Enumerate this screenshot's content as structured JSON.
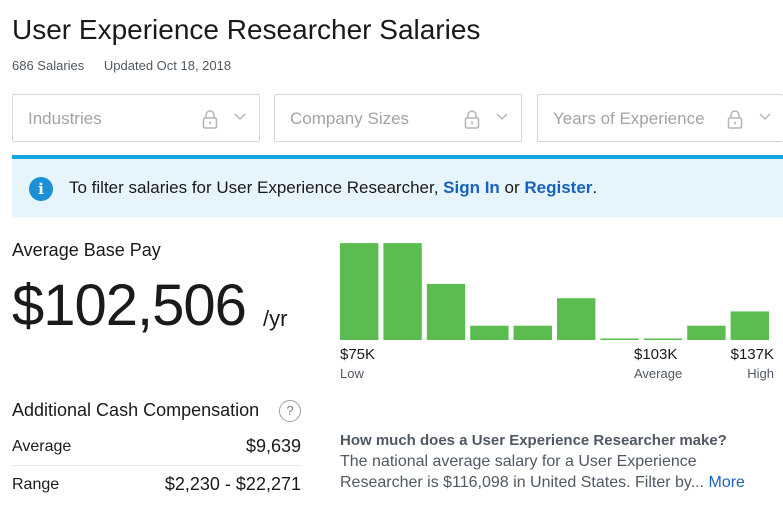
{
  "header": {
    "title": "User Experience Researcher Salaries",
    "salary_count": "686 Salaries",
    "updated": "Updated Oct 18, 2018"
  },
  "filters": [
    {
      "label": "Industries",
      "icon": "lock-icon"
    },
    {
      "label": "Company Sizes",
      "icon": "lock-icon"
    },
    {
      "label": "Years of Experience",
      "icon": "lock-icon"
    }
  ],
  "info_banner": {
    "icon": "info-icon",
    "icon_glyph": "i",
    "text_before": "To filter salaries for User Experience Researcher, ",
    "sign_in": "Sign In",
    "middle": " or ",
    "register": "Register",
    "end": "."
  },
  "base_pay": {
    "label": "Average Base Pay",
    "value": "$102,506",
    "unit": "/yr"
  },
  "chart_data": {
    "type": "bar",
    "title": "",
    "bar_color": "#5bbd4f",
    "values": [
      9.5,
      9.5,
      5.5,
      1.4,
      1.4,
      4.1,
      0.1,
      0.1,
      1.4,
      2.8
    ],
    "ylim": [
      0,
      10
    ],
    "ticks": [
      {
        "value": "$75K",
        "sub": "Low"
      },
      {
        "value": "$103K",
        "sub": "Average"
      },
      {
        "value": "$137K",
        "sub": "High"
      }
    ]
  },
  "additional_cash": {
    "title": "Additional Cash Compensation",
    "help_glyph": "?",
    "rows": [
      {
        "label": "Average",
        "value": "$9,639"
      },
      {
        "label": "Range",
        "value": "$2,230 - $22,271"
      }
    ]
  },
  "faq": {
    "question": "How much does a User Experience Researcher make?",
    "answer": "The national average salary for a User Experience Researcher is $116,098 in United States. Filter by...",
    "more": "More"
  },
  "colors": {
    "accent_blue": "#1861bf",
    "info_border": "#13a8e0",
    "bar_green": "#5bbd4f"
  }
}
